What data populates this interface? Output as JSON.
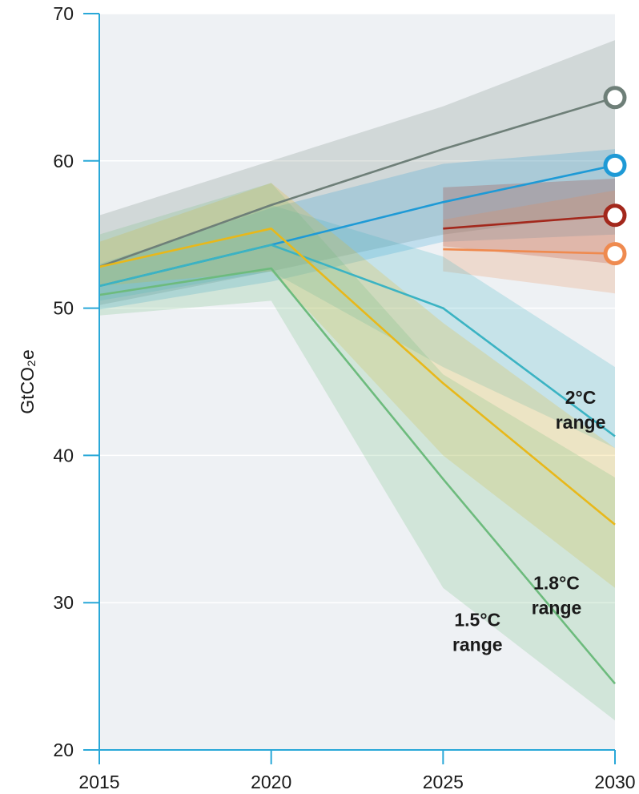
{
  "chart_data": {
    "type": "line",
    "title": "",
    "xlabel": "",
    "ylabel": "GtCO₂e",
    "xlim": [
      2015,
      2030
    ],
    "ylim": [
      20,
      70
    ],
    "x_ticks": [
      "2015",
      "2020",
      "2025",
      "2030"
    ],
    "y_ticks": [
      "20",
      "30",
      "40",
      "50",
      "60",
      "70"
    ],
    "grid": "horizontal",
    "colors": {
      "plot_background": "#eef1f4",
      "axis": "#29a8d8",
      "grey": "#6e7f78",
      "blue": "#1e9ad6",
      "dark_red": "#a3281c",
      "orange": "#ef8a4f",
      "teal": "#3bb3c3",
      "yellow": "#e8b81a",
      "green": "#6dbb7d"
    },
    "series": [
      {
        "color_key": "grey",
        "x": [
          2015,
          2020,
          2025,
          2030
        ],
        "y": [
          52.8,
          57.0,
          60.8,
          64.3
        ],
        "low": [
          50.2,
          52.5,
          55.0,
          56.5
        ],
        "high": [
          56.3,
          60.0,
          63.7,
          68.2
        ],
        "marker_end": true
      },
      {
        "color_key": "blue",
        "x": [
          2015,
          2020,
          2025,
          2030
        ],
        "y": [
          51.5,
          54.3,
          57.2,
          59.7
        ],
        "low": [
          49.9,
          51.8,
          54.5,
          55.0
        ],
        "high": [
          53.0,
          56.8,
          59.8,
          60.8
        ],
        "marker_end": true
      },
      {
        "color_key": "dark_red",
        "x": [
          2025,
          2030
        ],
        "y": [
          55.4,
          56.3
        ],
        "low": [
          54.2,
          53.0
        ],
        "high": [
          58.2,
          58.8
        ],
        "marker_end": true
      },
      {
        "color_key": "orange",
        "x": [
          2025,
          2030
        ],
        "y": [
          54.0,
          53.7
        ],
        "low": [
          52.5,
          51.0
        ],
        "high": [
          56.0,
          58.0
        ],
        "marker_end": true
      },
      {
        "color_key": "teal",
        "x": [
          2015,
          2020,
          2025,
          2030
        ],
        "y": [
          51.5,
          54.3,
          50.0,
          41.3
        ],
        "low": [
          50.5,
          52.5,
          46.0,
          40.5
        ],
        "high": [
          52.7,
          57.0,
          53.5,
          46.0
        ],
        "marker_end": false
      },
      {
        "color_key": "yellow",
        "x": [
          2015,
          2020,
          2025,
          2030
        ],
        "y": [
          52.8,
          55.4,
          44.9,
          35.3
        ],
        "low": [
          51.5,
          52.5,
          40.0,
          31.0
        ],
        "high": [
          54.5,
          58.5,
          49.0,
          40.5
        ],
        "marker_end": false
      },
      {
        "color_key": "green",
        "x": [
          2015,
          2020,
          2025,
          2030
        ],
        "y": [
          50.9,
          52.7,
          38.4,
          24.5
        ],
        "low": [
          49.5,
          50.5,
          31.0,
          22.0
        ],
        "high": [
          55.0,
          58.5,
          45.5,
          38.5
        ],
        "marker_end": false
      }
    ],
    "annotations": [
      {
        "lines": [
          "2°C",
          "range"
        ],
        "x": 2029.0,
        "y": 43.5
      },
      {
        "lines": [
          "1.8°C",
          "range"
        ],
        "x": 2028.3,
        "y": 30.9
      },
      {
        "lines": [
          "1.5°C",
          "range"
        ],
        "x": 2026.0,
        "y": 28.4
      }
    ]
  }
}
